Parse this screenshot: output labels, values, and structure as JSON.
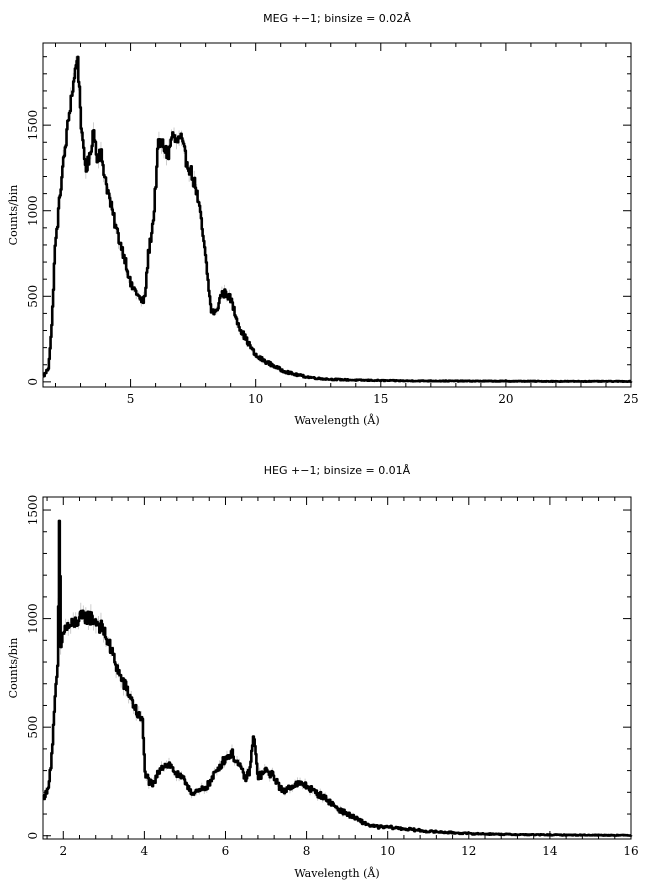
{
  "chart_data": [
    {
      "type": "line",
      "title": "MEG +−1; binsize = 0.02Å",
      "xlabel": "Wavelength (Å)",
      "ylabel": "Counts/bin",
      "xlim": [
        1.5,
        25
      ],
      "ylim": [
        -30,
        1980
      ],
      "xticks": [
        5,
        10,
        15,
        20,
        25
      ],
      "yticks": [
        0,
        500,
        1000,
        1500
      ],
      "xticklabels": [
        "5",
        "10",
        "15",
        "20",
        "25"
      ],
      "yticklabels": [
        "0",
        "500",
        "1000",
        "1500"
      ],
      "series": [
        {
          "x": [
            1.5,
            1.7,
            1.85,
            1.95,
            2.05,
            2.2,
            2.4,
            2.6,
            2.75,
            2.85,
            2.95,
            3.05,
            3.2,
            3.35,
            3.5,
            3.65,
            3.8,
            4.0,
            4.2,
            4.4,
            4.6,
            4.8,
            5.0,
            5.2,
            5.4,
            5.55,
            5.7,
            5.9,
            6.1,
            6.3,
            6.5,
            6.65,
            6.8,
            7.0,
            7.2,
            7.4,
            7.6,
            7.8,
            8.0,
            8.2,
            8.4,
            8.6,
            8.8,
            9.0,
            9.2,
            9.4,
            9.6,
            9.8,
            10.0,
            10.5,
            11.0,
            11.5,
            12.0,
            12.5,
            13.0,
            14.0,
            15.0,
            16.0,
            18.0,
            20.0,
            22.0,
            25.0
          ],
          "y": [
            30,
            80,
            350,
            750,
            900,
            1150,
            1400,
            1650,
            1780,
            1920,
            1700,
            1400,
            1250,
            1300,
            1480,
            1320,
            1340,
            1170,
            1030,
            900,
            800,
            700,
            560,
            530,
            470,
            480,
            750,
            950,
            1400,
            1380,
            1320,
            1450,
            1400,
            1420,
            1300,
            1230,
            1130,
            950,
            700,
            420,
            400,
            510,
            520,
            480,
            380,
            300,
            250,
            200,
            150,
            110,
            70,
            45,
            30,
            20,
            15,
            10,
            8,
            6,
            5,
            4,
            3,
            3
          ]
        }
      ]
    },
    {
      "type": "line",
      "title": "HEG +−1; binsize = 0.01Å",
      "xlabel": "Wavelength (Å)",
      "ylabel": "Counts/bin",
      "xlim": [
        1.5,
        16
      ],
      "ylim": [
        -15,
        1560
      ],
      "xticks": [
        2,
        4,
        6,
        8,
        10,
        12,
        14,
        16
      ],
      "yticks": [
        0,
        500,
        1000,
        1500
      ],
      "xticklabels": [
        "2",
        "4",
        "6",
        "8",
        "10",
        "12",
        "14",
        "16"
      ],
      "yticklabels": [
        "0",
        "500",
        "1000",
        "1500"
      ],
      "series": [
        {
          "x": [
            1.5,
            1.6,
            1.7,
            1.8,
            1.86,
            1.9,
            1.93,
            1.96,
            2.0,
            2.2,
            2.4,
            2.6,
            2.8,
            3.0,
            3.2,
            3.4,
            3.6,
            3.8,
            3.95,
            4.0,
            4.1,
            4.2,
            4.4,
            4.6,
            4.8,
            5.0,
            5.2,
            5.4,
            5.6,
            5.8,
            6.0,
            6.15,
            6.3,
            6.5,
            6.6,
            6.68,
            6.72,
            6.8,
            7.0,
            7.2,
            7.4,
            7.6,
            7.8,
            8.0,
            8.2,
            8.4,
            8.6,
            8.8,
            9.0,
            9.2,
            9.4,
            9.6,
            9.8,
            10.0,
            10.5,
            11.0,
            11.5,
            12.0,
            13.0,
            14.0,
            15.0,
            16.0
          ],
          "y": [
            180,
            200,
            350,
            650,
            800,
            1530,
            850,
            900,
            950,
            970,
            1000,
            1010,
            990,
            940,
            840,
            730,
            660,
            570,
            520,
            300,
            250,
            230,
            320,
            330,
            280,
            250,
            190,
            210,
            240,
            310,
            360,
            380,
            330,
            260,
            310,
            460,
            400,
            270,
            300,
            270,
            200,
            230,
            240,
            230,
            200,
            180,
            150,
            120,
            100,
            80,
            60,
            45,
            40,
            40,
            30,
            20,
            15,
            10,
            6,
            4,
            3,
            2
          ]
        }
      ]
    }
  ]
}
